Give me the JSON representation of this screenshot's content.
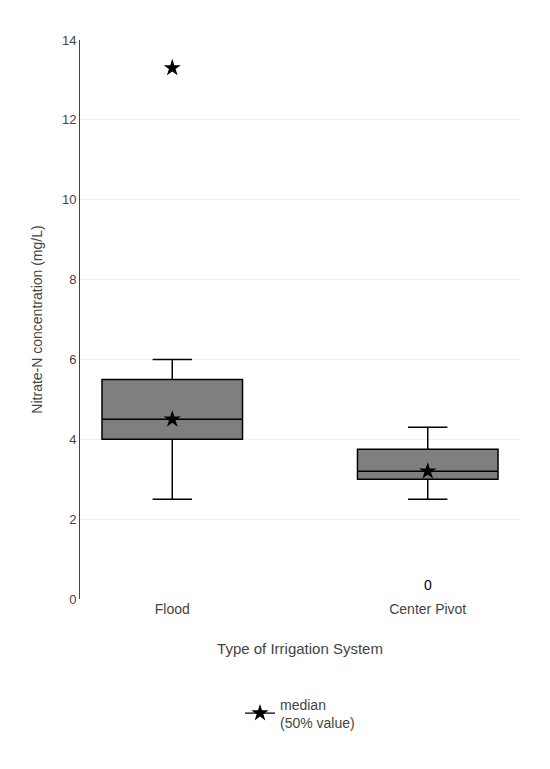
{
  "chart_data": {
    "type": "box",
    "xlabel": "Type of Irrigation System",
    "ylabel": "Nitrate-N concentration (mg/L)",
    "categories": [
      "Flood",
      "Center Pivot"
    ],
    "boxes": [
      {
        "q1": 4.0,
        "median": 4.5,
        "q3": 5.5,
        "whisker_low": 2.5,
        "whisker_high": 6.0,
        "mean": 4.5,
        "outliers": [
          13.3
        ]
      },
      {
        "q1": 3.0,
        "median": 3.2,
        "q3": 3.75,
        "whisker_low": 2.5,
        "whisker_high": 4.3,
        "mean": 3.2
      }
    ],
    "annotations": [
      {
        "text": "0",
        "x": "Center Pivot",
        "y": 0.35
      }
    ],
    "legend_label": "median\n(50% value)",
    "legend": "bottom",
    "marker": "star",
    "color": "black",
    "ylim": [
      0,
      14
    ],
    "yticks": [
      0,
      2,
      4,
      6,
      8,
      10,
      12,
      14
    ]
  }
}
